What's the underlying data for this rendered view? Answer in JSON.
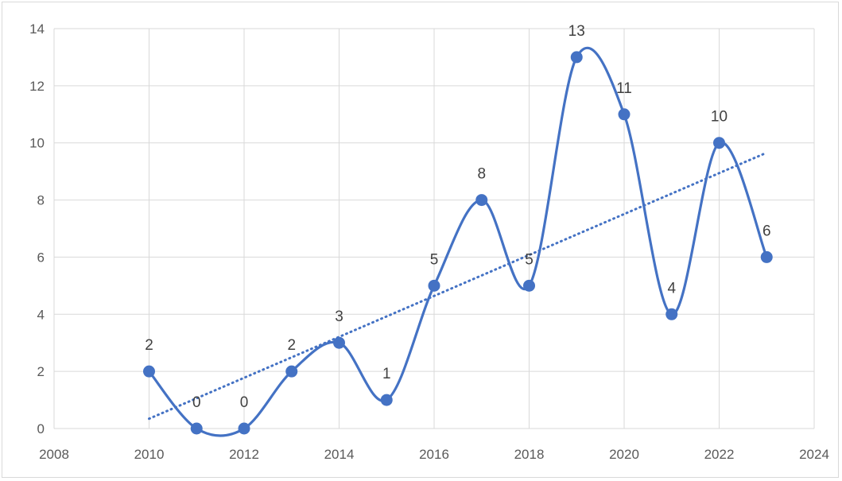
{
  "chart_data": {
    "type": "scatter",
    "x": [
      2010,
      2011,
      2012,
      2013,
      2014,
      2015,
      2016,
      2017,
      2018,
      2019,
      2020,
      2021,
      2022,
      2023
    ],
    "y": [
      2,
      0,
      0,
      2,
      3,
      1,
      5,
      8,
      5,
      13,
      11,
      4,
      10,
      6
    ],
    "series": [
      {
        "name": "",
        "x": [
          2010,
          2011,
          2012,
          2013,
          2014,
          2015,
          2016,
          2017,
          2018,
          2019,
          2020,
          2021,
          2022,
          2023
        ],
        "y": [
          2,
          0,
          0,
          2,
          3,
          1,
          5,
          8,
          5,
          13,
          11,
          4,
          10,
          6
        ],
        "data_labels": [
          "2",
          "0",
          "0",
          "2",
          "3",
          "1",
          "5",
          "8",
          "5",
          "13",
          "11",
          "4",
          "10",
          "6"
        ],
        "line": "smooth",
        "color": "#4472c4"
      }
    ],
    "trendline": {
      "type": "linear",
      "style": "dotted",
      "color": "#4472c4"
    },
    "xlim": [
      2008,
      2024
    ],
    "ylim": [
      0,
      14
    ],
    "x_ticks": [
      "2008",
      "2010",
      "2012",
      "2014",
      "2016",
      "2018",
      "2020",
      "2022",
      "2024"
    ],
    "y_ticks": [
      "0",
      "2",
      "4",
      "6",
      "8",
      "10",
      "12",
      "14"
    ],
    "grid": true,
    "legend": "none",
    "title": "",
    "xlabel": "",
    "ylabel": ""
  }
}
